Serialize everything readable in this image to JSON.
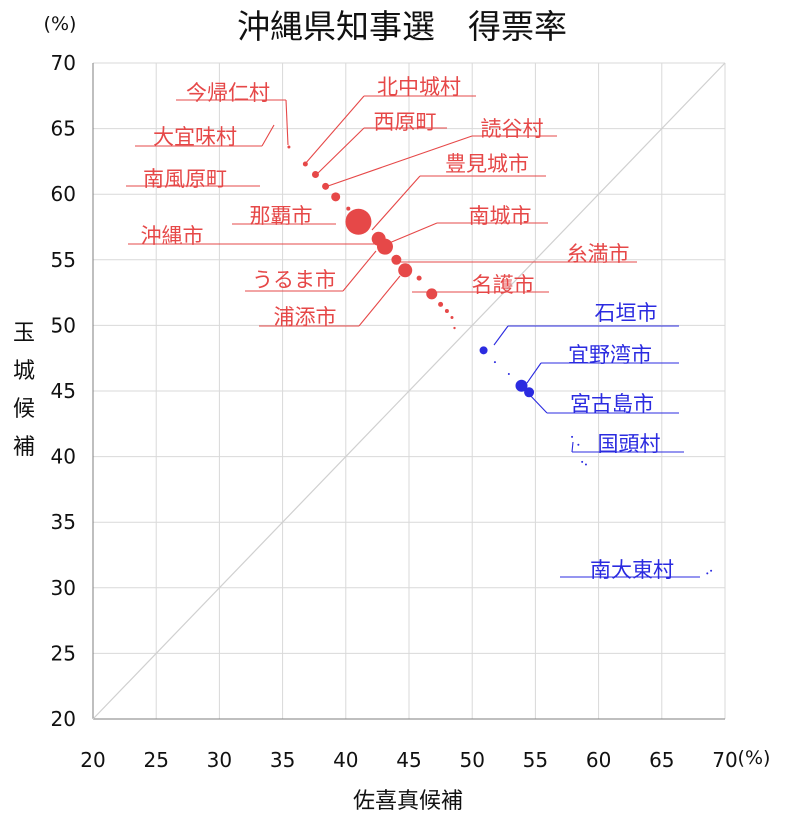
{
  "chart_data": {
    "type": "scatter",
    "title": "沖縄県知事選　得票率",
    "xlabel": "佐喜真候補",
    "ylabel": "玉城候補",
    "x_unit": "(%)",
    "y_unit": "(%)",
    "xlim": [
      20,
      70
    ],
    "ylim": [
      20,
      70
    ],
    "x_ticks": [
      20,
      25,
      30,
      35,
      40,
      45,
      50,
      55,
      60,
      65,
      70
    ],
    "y_ticks": [
      20,
      25,
      30,
      35,
      40,
      45,
      50,
      55,
      60,
      65,
      70
    ],
    "grid": true,
    "reference_line": "y = x",
    "colors": {
      "red_series": "#e64848",
      "blue_series": "#2b2be0"
    },
    "series": [
      {
        "color": "#e64848",
        "points": [
          {
            "x": 41.0,
            "y": 57.9,
            "size": 13
          },
          {
            "x": 42.6,
            "y": 56.6,
            "size": 7
          },
          {
            "x": 43.1,
            "y": 56.0,
            "size": 8
          },
          {
            "x": 44.0,
            "y": 55.0,
            "size": 5
          },
          {
            "x": 44.7,
            "y": 54.2,
            "size": 7
          },
          {
            "x": 46.8,
            "y": 52.4,
            "size": 5.5
          },
          {
            "x": 39.2,
            "y": 59.8,
            "size": 4.5
          },
          {
            "x": 38.4,
            "y": 60.6,
            "size": 3.5
          },
          {
            "x": 37.6,
            "y": 61.5,
            "size": 3.5
          },
          {
            "x": 36.8,
            "y": 62.3,
            "size": 2.5
          },
          {
            "x": 35.5,
            "y": 63.6,
            "size": 1.5
          },
          {
            "x": 40.2,
            "y": 58.9,
            "size": 2
          },
          {
            "x": 45.8,
            "y": 53.6,
            "size": 2.5
          },
          {
            "x": 47.5,
            "y": 51.6,
            "size": 2.5
          },
          {
            "x": 48.0,
            "y": 51.1,
            "size": 2
          },
          {
            "x": 48.4,
            "y": 50.6,
            "size": 1.5
          },
          {
            "x": 48.6,
            "y": 49.8,
            "size": 1.2
          }
        ]
      },
      {
        "color": "#2b2be0",
        "points": [
          {
            "x": 50.9,
            "y": 48.1,
            "size": 4
          },
          {
            "x": 53.9,
            "y": 45.4,
            "size": 6
          },
          {
            "x": 54.5,
            "y": 44.9,
            "size": 5
          },
          {
            "x": 51.8,
            "y": 47.2,
            "size": 1
          },
          {
            "x": 52.9,
            "y": 46.3,
            "size": 1
          },
          {
            "x": 57.9,
            "y": 41.5,
            "size": 1
          },
          {
            "x": 58.4,
            "y": 40.9,
            "size": 1
          },
          {
            "x": 59.0,
            "y": 39.4,
            "size": 1
          },
          {
            "x": 58.7,
            "y": 39.6,
            "size": 1
          },
          {
            "x": 68.6,
            "y": 31.1,
            "size": 1
          },
          {
            "x": 68.9,
            "y": 31.3,
            "size": 1
          }
        ]
      }
    ],
    "annotations": [
      {
        "text": "今帰仁村",
        "color": "#e64848"
      },
      {
        "text": "北中城村",
        "color": "#e64848"
      },
      {
        "text": "大宜味村",
        "color": "#e64848"
      },
      {
        "text": "西原町",
        "color": "#e64848"
      },
      {
        "text": "読谷村",
        "color": "#e64848"
      },
      {
        "text": "南風原町",
        "color": "#e64848"
      },
      {
        "text": "豊見城市",
        "color": "#e64848"
      },
      {
        "text": "那覇市",
        "color": "#e64848"
      },
      {
        "text": "南城市",
        "color": "#e64848"
      },
      {
        "text": "沖縄市",
        "color": "#e64848"
      },
      {
        "text": "糸満市",
        "color": "#e64848"
      },
      {
        "text": "うるま市",
        "color": "#e64848"
      },
      {
        "text": "名護市",
        "color": "#e64848"
      },
      {
        "text": "浦添市",
        "color": "#e64848"
      },
      {
        "text": "石垣市",
        "color": "#2b2be0"
      },
      {
        "text": "宜野湾市",
        "color": "#2b2be0"
      },
      {
        "text": "宮古島市",
        "color": "#2b2be0"
      },
      {
        "text": "国頭村",
        "color": "#2b2be0"
      },
      {
        "text": "南大東村",
        "color": "#2b2be0"
      }
    ]
  }
}
